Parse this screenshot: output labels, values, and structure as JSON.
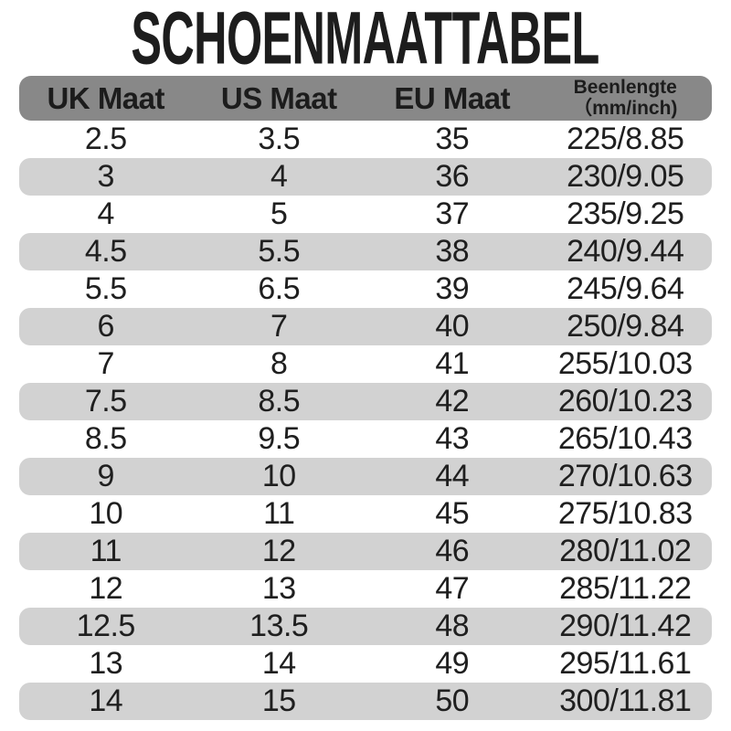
{
  "title": "SCHOENMAATTABEL",
  "colors": {
    "page_bg": "#ffffff",
    "title_text": "#1d1d1d",
    "header_bg": "#888888",
    "header_text": "#1c1c1c",
    "alt_row_bg": "#d2d2d2",
    "body_text": "#1f1f1f"
  },
  "table": {
    "headers": [
      {
        "label": "UK Maat"
      },
      {
        "label": "US Maat"
      },
      {
        "label": "EU Maat"
      },
      {
        "label": "Beenlengte",
        "sublabel": "（mm/inch)"
      }
    ],
    "rows": [
      [
        "2.5",
        "3.5",
        "35",
        "225/8.85"
      ],
      [
        "3",
        "4",
        "36",
        "230/9.05"
      ],
      [
        "4",
        "5",
        "37",
        "235/9.25"
      ],
      [
        "4.5",
        "5.5",
        "38",
        "240/9.44"
      ],
      [
        "5.5",
        "6.5",
        "39",
        "245/9.64"
      ],
      [
        "6",
        "7",
        "40",
        "250/9.84"
      ],
      [
        "7",
        "8",
        "41",
        "255/10.03"
      ],
      [
        "7.5",
        "8.5",
        "42",
        "260/10.23"
      ],
      [
        "8.5",
        "9.5",
        "43",
        "265/10.43"
      ],
      [
        "9",
        "10",
        "44",
        "270/10.63"
      ],
      [
        "10",
        "11",
        "45",
        "275/10.83"
      ],
      [
        "11",
        "12",
        "46",
        "280/11.02"
      ],
      [
        "12",
        "13",
        "47",
        "285/11.22"
      ],
      [
        "12.5",
        "13.5",
        "48",
        "290/11.42"
      ],
      [
        "13",
        "14",
        "49",
        "295/11.61"
      ],
      [
        "14",
        "15",
        "50",
        "300/11.81"
      ]
    ]
  }
}
